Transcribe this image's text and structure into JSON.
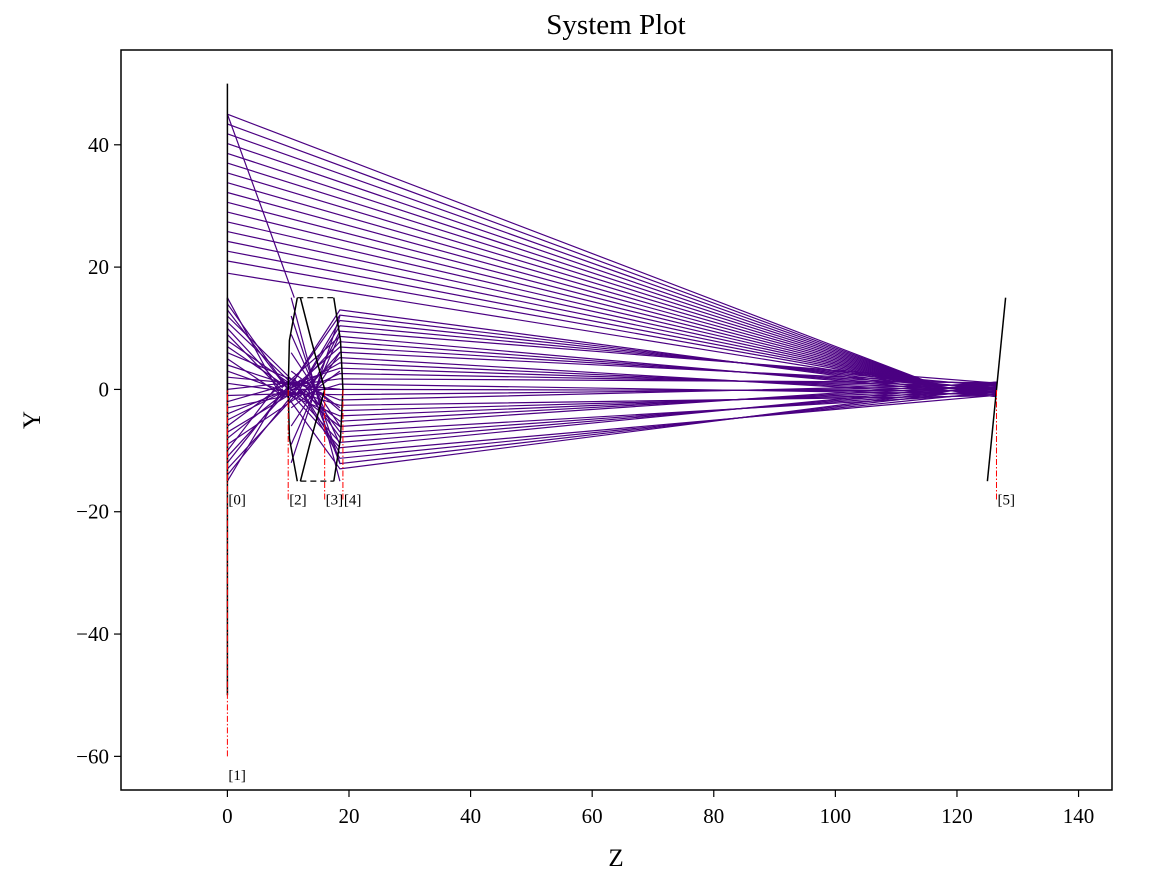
{
  "chart_data": {
    "type": "line",
    "title": "System Plot",
    "xlabel": "Z",
    "ylabel": "Y",
    "xlim": [
      -17.5,
      145.5
    ],
    "ylim": [
      -65.5,
      55.5
    ],
    "xticks": [
      0,
      20,
      40,
      60,
      80,
      100,
      120,
      140
    ],
    "yticks": [
      -60,
      -40,
      -20,
      0,
      20,
      40
    ],
    "xtick_labels": [
      "0",
      "20",
      "40",
      "60",
      "80",
      "100",
      "120",
      "140"
    ],
    "ytick_labels": [
      "−60",
      "−40",
      "−20",
      "0",
      "20",
      "40"
    ],
    "grid": false,
    "colors": {
      "ray": "#4b0082",
      "surface": "#000000",
      "surface_marker": "#ff0000"
    },
    "surfaces": [
      {
        "label": "[0]",
        "z": 0.0,
        "profile": [
          [
            0.0,
            -50.0
          ],
          [
            0.0,
            50.0
          ]
        ],
        "marker_y": [
          -15.0,
          0.0
        ],
        "label_y": -19.5
      },
      {
        "label": "[1]",
        "z": 0.0,
        "profile": [
          [
            0.0,
            -15.0
          ],
          [
            0.0,
            15.0
          ]
        ],
        "marker_y": [
          -60.0,
          0.0
        ],
        "label_y": -64.5
      },
      {
        "label": "[2]",
        "z": 10.0,
        "profile": [
          [
            11.5,
            -15.0
          ],
          [
            10.2,
            -8.0
          ],
          [
            10.0,
            0.0
          ],
          [
            10.2,
            8.0
          ],
          [
            11.5,
            15.0
          ]
        ],
        "marker_y": [
          -18.0,
          0.0
        ],
        "label_y": -19.5
      },
      {
        "label": "[3]",
        "z": 16.0,
        "profile": [
          [
            12.0,
            -15.0
          ],
          [
            13.8,
            -8.0
          ],
          [
            16.0,
            0.0
          ],
          [
            13.8,
            8.0
          ],
          [
            12.0,
            15.0
          ]
        ],
        "marker_y": [
          -18.0,
          0.0
        ],
        "label_y": -19.5
      },
      {
        "label": "[4]",
        "z": 19.0,
        "profile": [
          [
            17.5,
            -15.0
          ],
          [
            18.6,
            -8.0
          ],
          [
            19.0,
            0.0
          ],
          [
            18.6,
            8.0
          ],
          [
            17.5,
            15.0
          ]
        ],
        "marker_y": [
          -18.0,
          0.0
        ],
        "label_y": -19.5
      },
      {
        "label": "[5]",
        "z": 126.5,
        "profile": [
          [
            125.0,
            -15.0
          ],
          [
            128.0,
            15.0
          ]
        ],
        "marker_y": [
          -18.0,
          0.0
        ],
        "label_y": -19.5
      }
    ],
    "lens_edges": [
      {
        "from": [
          11.5,
          15.0
        ],
        "to": [
          17.5,
          15.0
        ]
      },
      {
        "from": [
          12.0,
          -15.0
        ],
        "to": [
          17.5,
          -15.0
        ]
      }
    ],
    "ray_bundles": [
      {
        "name": "",
        "start_z": 0.0,
        "start_y": [
          45.0,
          43.4,
          41.8,
          40.2,
          38.6,
          37.0,
          35.4,
          33.8,
          32.2,
          30.6,
          29.0,
          27.4,
          25.8,
          24.2,
          22.6,
          21.0,
          19.0
        ],
        "focus": [
          118.0,
          0.2
        ],
        "end_z": 126.5,
        "end_y": [
          -0.4,
          0.0,
          0.3,
          0.6,
          0.9,
          1.2
        ]
      },
      {
        "name": "",
        "start_z": 0.0,
        "start_y": [
          15.0,
          14.0,
          13.0,
          12.0,
          11.0,
          10.0,
          9.0,
          8.0,
          7.0,
          6.0,
          5.0,
          4.0,
          3.0,
          2.0,
          1.0,
          0.0,
          -1.0,
          -2.0,
          -3.0,
          -4.0,
          -5.0,
          -6.0,
          -7.0,
          -8.0,
          -9.0,
          -10.0,
          -11.0,
          -12.0,
          -13.0,
          -14.0,
          -15.0
        ],
        "lens_z": 18.5,
        "lens_y_range": [
          13.0,
          -13.0
        ],
        "end_z": 126.5,
        "end_y": [
          -1.2,
          1.2
        ]
      }
    ],
    "stray_ray": {
      "from": [
        0.0,
        45.0
      ],
      "to": [
        11.0,
        15.0
      ]
    }
  }
}
